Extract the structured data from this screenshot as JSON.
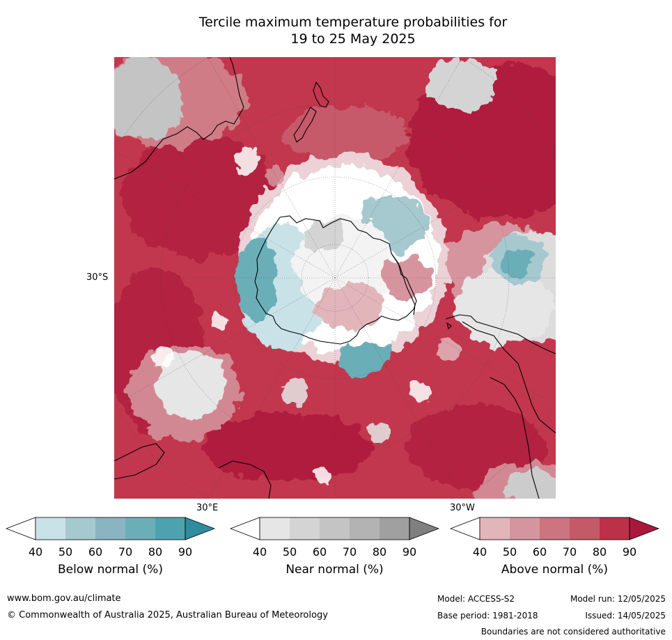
{
  "title": {
    "line1": "Tercile maximum temperature probabilities for",
    "line2": "19 to 25 May 2025"
  },
  "map": {
    "labels": {
      "lat_30s": "30°S",
      "lon_30e": "30°E",
      "lon_30w": "30°W"
    }
  },
  "colorbars": [
    {
      "title": "Below normal (%)",
      "ticks": [
        "40",
        "50",
        "60",
        "70",
        "80",
        "90"
      ],
      "colors": [
        "#ffffff",
        "#c9e2e8",
        "#a6c8cf",
        "#8ab4c1",
        "#6aaeb8",
        "#4ea2b0",
        "#2e8c9e"
      ]
    },
    {
      "title": "Near normal (%)",
      "ticks": [
        "40",
        "50",
        "60",
        "70",
        "80",
        "90"
      ],
      "colors": [
        "#ffffff",
        "#e6e6e6",
        "#d4d4d4",
        "#c4c4c4",
        "#b3b3b3",
        "#a0a0a0",
        "#7f7f7f"
      ]
    },
    {
      "title": "Above normal (%)",
      "ticks": [
        "40",
        "50",
        "60",
        "70",
        "80",
        "90"
      ],
      "colors": [
        "#ffffff",
        "#e2b5bb",
        "#d6959e",
        "#cc7480",
        "#c45a68",
        "#bb3148",
        "#a8183a"
      ]
    }
  ],
  "footer": {
    "website": "www.bom.gov.au/climate",
    "copyright": "© Commonwealth of Australia 2025, Australian Bureau of Meteorology",
    "model": "Model: ACCESS-S2",
    "model_run": "Model run: 12/05/2025",
    "base_period": "Base period: 1981-2018",
    "issued": "Issued: 14/05/2025",
    "disclaimer": "Boundaries are not considered authoritative"
  }
}
